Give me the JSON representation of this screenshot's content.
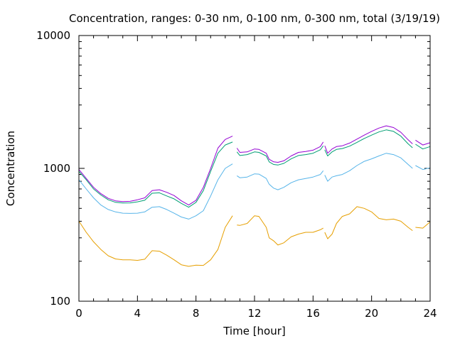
{
  "chart_data": {
    "type": "line",
    "title": "Concentration, ranges: 0-30 nm, 0-100 nm, 0-300 nm, total (3/19/19)",
    "xlabel": "Time [hour]",
    "ylabel": "Concentration",
    "xlim": [
      0,
      24
    ],
    "ylim": [
      100,
      10000
    ],
    "yscale": "log",
    "grid": false,
    "legend": "none",
    "x_ticks": [
      "0",
      "4",
      "8",
      "12",
      "16",
      "20",
      "24"
    ],
    "y_ticks": [
      "100",
      "1000",
      "10000"
    ],
    "x_tick_values": [
      0,
      4,
      8,
      12,
      16,
      20,
      24
    ],
    "y_tick_values": [
      100,
      1000,
      10000
    ],
    "series": [
      {
        "color": "#e69f00",
        "x": [
          0,
          0.5,
          1,
          1.5,
          2,
          2.5,
          3,
          3.5,
          4,
          4.5,
          5,
          5.5,
          6,
          6.5,
          7,
          7.5,
          8,
          8.5,
          9,
          9.5,
          10,
          10.5,
          null,
          10.8,
          11,
          11.5,
          12,
          12.3,
          12.8,
          13,
          13.3,
          13.6,
          14,
          14.5,
          15,
          15.5,
          16,
          16.5,
          16.7,
          null,
          16.8,
          17,
          17.3,
          17.6,
          18,
          18.5,
          19,
          19.5,
          20,
          20.5,
          21,
          21.5,
          22,
          22.5,
          22.8,
          null,
          23,
          23.5,
          24
        ],
        "y": [
          400,
          330,
          280,
          245,
          220,
          208,
          205,
          205,
          203,
          207,
          240,
          238,
          222,
          205,
          188,
          183,
          187,
          186,
          205,
          245,
          360,
          440,
          null,
          375,
          372,
          385,
          440,
          435,
          360,
          300,
          285,
          265,
          275,
          305,
          320,
          330,
          330,
          345,
          355,
          null,
          330,
          295,
          320,
          385,
          435,
          455,
          515,
          500,
          470,
          420,
          410,
          415,
          400,
          360,
          340,
          null,
          360,
          355,
          395
        ]
      },
      {
        "color": "#56b4e9",
        "x": [
          0,
          0.5,
          1,
          1.5,
          2,
          2.5,
          3,
          3.5,
          4,
          4.5,
          5,
          5.5,
          6,
          6.5,
          7,
          7.5,
          8,
          8.5,
          9,
          9.5,
          10,
          10.5,
          null,
          10.8,
          11,
          11.5,
          12,
          12.3,
          12.8,
          13,
          13.3,
          13.6,
          14,
          14.5,
          15,
          15.5,
          16,
          16.5,
          16.7,
          null,
          16.8,
          17,
          17.3,
          17.6,
          18,
          18.5,
          19,
          19.5,
          20,
          20.5,
          21,
          21.5,
          22,
          22.5,
          22.8,
          null,
          23,
          23.5,
          24
        ],
        "y": [
          820,
          700,
          600,
          530,
          490,
          470,
          460,
          458,
          460,
          470,
          510,
          515,
          490,
          460,
          430,
          415,
          440,
          480,
          620,
          820,
          1000,
          1080,
          null,
          880,
          850,
          860,
          910,
          905,
          840,
          760,
          710,
          690,
          720,
          780,
          820,
          840,
          860,
          900,
          960,
          null,
          890,
          800,
          860,
          880,
          900,
          960,
          1050,
          1130,
          1180,
          1240,
          1300,
          1270,
          1200,
          1070,
          1000,
          null,
          1050,
          980,
          1010
        ]
      },
      {
        "color": "#009e73",
        "x": [
          0,
          0.5,
          1,
          1.5,
          2,
          2.5,
          3,
          3.5,
          4,
          4.5,
          5,
          5.5,
          6,
          6.5,
          7,
          7.5,
          8,
          8.5,
          9,
          9.5,
          10,
          10.5,
          null,
          10.8,
          11,
          11.5,
          12,
          12.3,
          12.8,
          13,
          13.3,
          13.6,
          14,
          14.5,
          15,
          15.5,
          16,
          16.5,
          16.7,
          null,
          16.8,
          17,
          17.3,
          17.6,
          18,
          18.5,
          19,
          19.5,
          20,
          20.5,
          21,
          21.5,
          22,
          22.5,
          22.8,
          null,
          23,
          23.5,
          24
        ],
        "y": [
          950,
          820,
          700,
          630,
          580,
          555,
          548,
          550,
          560,
          575,
          650,
          655,
          620,
          590,
          545,
          510,
          555,
          680,
          950,
          1300,
          1500,
          1580,
          null,
          1330,
          1250,
          1270,
          1330,
          1320,
          1240,
          1120,
          1070,
          1060,
          1090,
          1180,
          1250,
          1270,
          1300,
          1380,
          1480,
          null,
          1380,
          1240,
          1330,
          1390,
          1410,
          1470,
          1570,
          1680,
          1780,
          1880,
          1950,
          1900,
          1750,
          1530,
          1430,
          null,
          1520,
          1400,
          1460
        ]
      },
      {
        "color": "#9400d3",
        "x": [
          0,
          0.5,
          1,
          1.5,
          2,
          2.5,
          3,
          3.5,
          4,
          4.5,
          5,
          5.5,
          6,
          6.5,
          7,
          7.5,
          8,
          8.5,
          9,
          9.5,
          10,
          10.5,
          null,
          10.8,
          11,
          11.5,
          12,
          12.3,
          12.8,
          13,
          13.3,
          13.6,
          14,
          14.5,
          15,
          15.5,
          16,
          16.5,
          16.7,
          null,
          16.8,
          17,
          17.3,
          17.6,
          18,
          18.5,
          19,
          19.5,
          20,
          20.5,
          21,
          21.5,
          22,
          22.5,
          22.8,
          null,
          23,
          23.5,
          24
        ],
        "y": [
          980,
          840,
          720,
          645,
          595,
          570,
          562,
          565,
          580,
          600,
          680,
          690,
          660,
          625,
          570,
          530,
          575,
          720,
          1000,
          1420,
          1650,
          1750,
          null,
          1420,
          1320,
          1330,
          1400,
          1390,
          1300,
          1170,
          1120,
          1110,
          1140,
          1240,
          1320,
          1340,
          1370,
          1460,
          1580,
          null,
          1480,
          1300,
          1400,
          1460,
          1480,
          1550,
          1660,
          1780,
          1900,
          2010,
          2090,
          2030,
          1870,
          1640,
          1530,
          null,
          1630,
          1500,
          1560
        ]
      }
    ]
  }
}
